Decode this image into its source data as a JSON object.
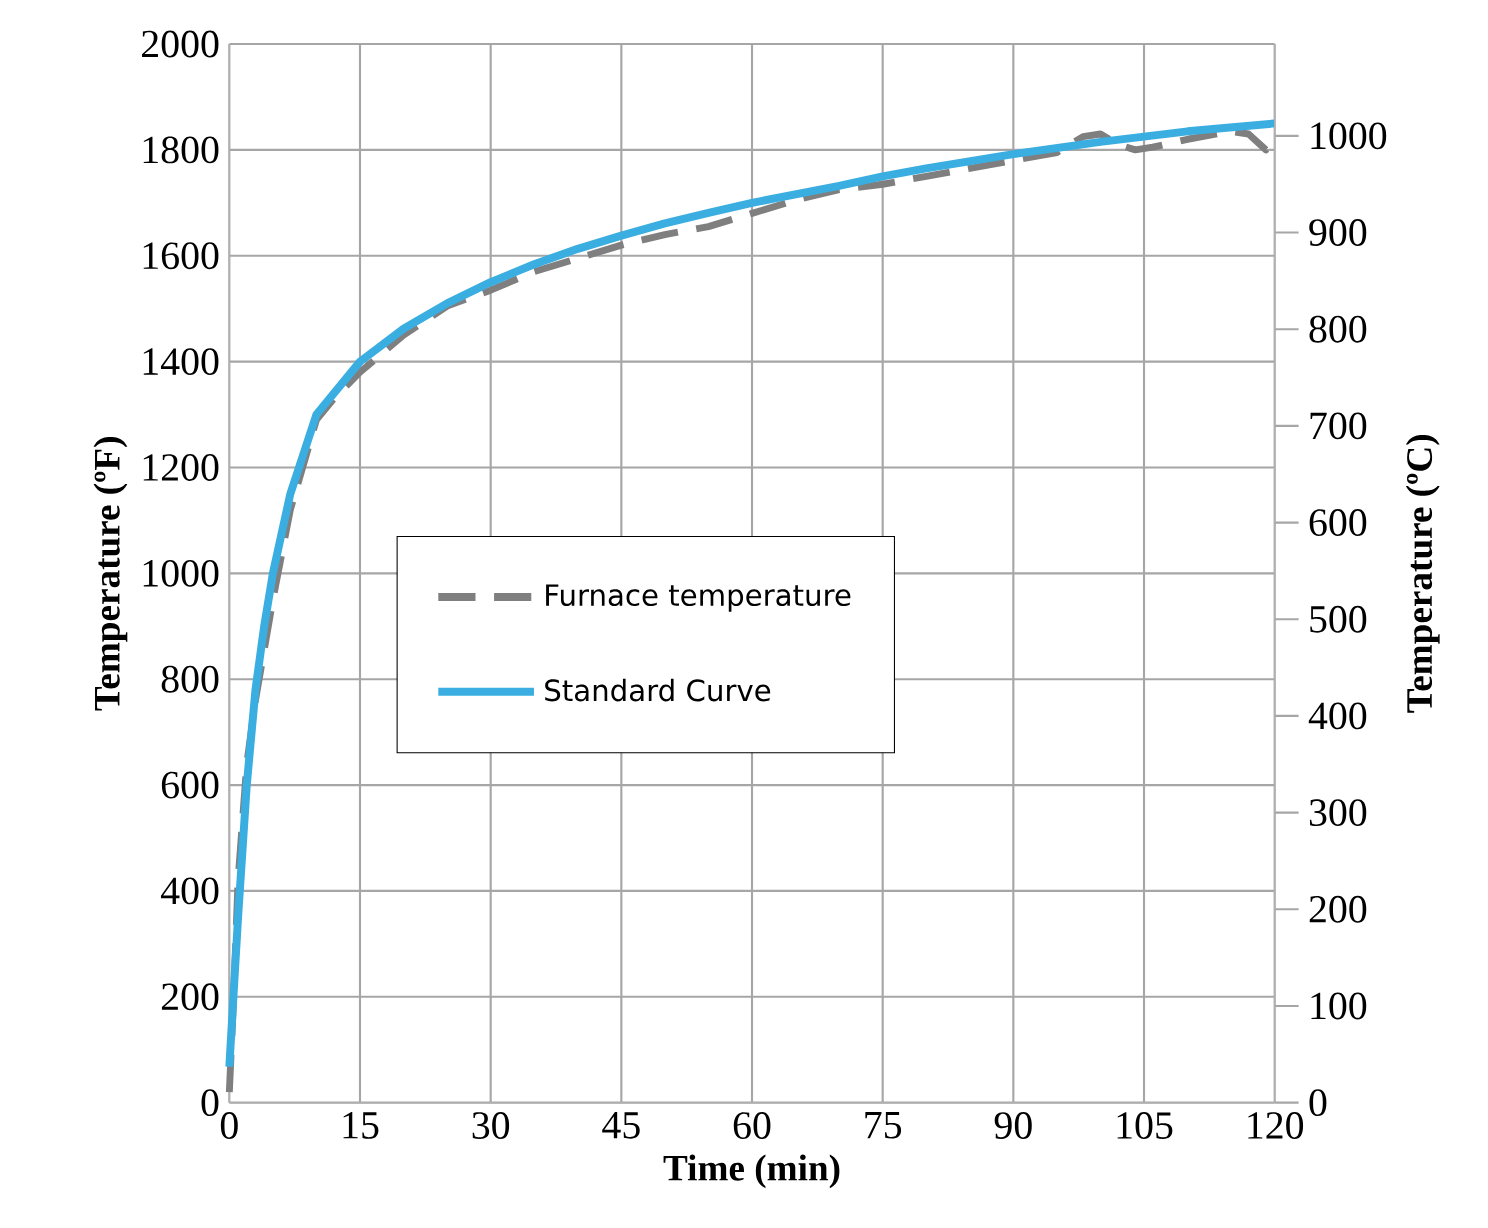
{
  "chart_data": {
    "type": "line",
    "xlabel": "Time (min)",
    "ylabel": "Temperature (ºF)",
    "y2label": "Temperature (ºC)",
    "xlim": [
      0,
      120
    ],
    "xticks": [
      0,
      15,
      30,
      45,
      60,
      75,
      90,
      105,
      120
    ],
    "ylim": [
      0,
      2000
    ],
    "yticks": [
      0,
      200,
      400,
      600,
      800,
      1000,
      1200,
      1400,
      1600,
      1800,
      2000
    ],
    "y2lim": [
      0,
      1095
    ],
    "y2ticks": [
      0,
      100,
      200,
      300,
      400,
      500,
      600,
      700,
      800,
      900,
      1000
    ],
    "grid": true,
    "legend": "left",
    "marker": "none",
    "series": [
      {
        "name": "Furnace temperature",
        "color": "#7f7f7f",
        "line_style": "dashed",
        "x": [
          0,
          0.5,
          1,
          2,
          3,
          5,
          7,
          10,
          12,
          15,
          20,
          25,
          30,
          35,
          40,
          45,
          50,
          55,
          60,
          65,
          70,
          75,
          80,
          85,
          90,
          95,
          98,
          100,
          102,
          104,
          106,
          110,
          115,
          117,
          119,
          120
        ],
        "values": [
          20,
          200,
          420,
          640,
          760,
          950,
          1120,
          1290,
          1330,
          1380,
          1450,
          1505,
          1535,
          1570,
          1595,
          1620,
          1640,
          1655,
          1680,
          1705,
          1725,
          1735,
          1750,
          1765,
          1780,
          1795,
          1825,
          1830,
          1810,
          1800,
          1805,
          1820,
          1835,
          1830,
          1800,
          1830
        ]
      },
      {
        "name": "Standard Curve",
        "color": "#3aaee0",
        "line_style": "solid",
        "x": [
          0,
          1,
          2,
          3,
          4,
          5,
          7,
          10,
          15,
          20,
          25,
          30,
          35,
          40,
          45,
          50,
          55,
          60,
          70,
          75,
          80,
          90,
          100,
          105,
          110,
          120
        ],
        "values": [
          68,
          350,
          600,
          780,
          900,
          1000,
          1150,
          1300,
          1400,
          1462,
          1510,
          1550,
          1584,
          1613,
          1638,
          1661,
          1681,
          1700,
          1732,
          1750,
          1765,
          1792,
          1815,
          1825,
          1835,
          1850
        ]
      }
    ]
  }
}
